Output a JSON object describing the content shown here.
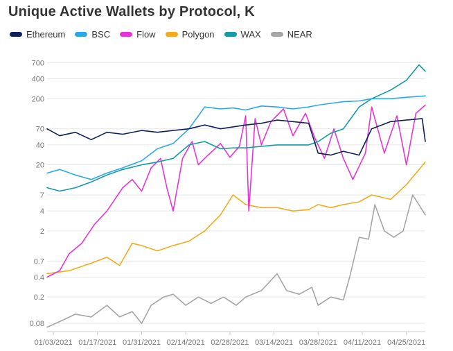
{
  "title": "Unique Active Wallets by Protocol, K",
  "chart_data": {
    "type": "line",
    "title": "Unique Active Wallets by Protocol, K",
    "xlabel": "",
    "ylabel": "",
    "y_scale": "log",
    "ylim": [
      0.06,
      900
    ],
    "x_range": [
      "2021-01-01",
      "2021-05-01"
    ],
    "y_ticks": [
      0.08,
      0.2,
      0.4,
      0.7,
      2,
      4,
      7,
      20,
      40,
      70,
      200,
      400,
      700
    ],
    "y_tick_labels": [
      "0.08",
      "0.2",
      "0.4",
      "0.7",
      "2",
      "4",
      "7",
      "20",
      "40",
      "70",
      "200",
      "400",
      "700"
    ],
    "x_ticks": [
      "2021-01-03",
      "2021-01-17",
      "2021-01-31",
      "2021-02-14",
      "2021-02-28",
      "2021-03-14",
      "2021-03-28",
      "2021-04-11",
      "2021-04-25"
    ],
    "x_tick_labels": [
      "01/03/2021",
      "01/17/2021",
      "01/31/2021",
      "02/14/2021",
      "02/28/2021",
      "03/14/2021",
      "03/28/2021",
      "04/11/2021",
      "04/25/2021"
    ],
    "grid": "horizontal",
    "legend_position": "top-left",
    "series": [
      {
        "name": "Ethereum",
        "color": "#0b2158",
        "points": [
          [
            "2021-01-01",
            70
          ],
          [
            "2021-01-05",
            55
          ],
          [
            "2021-01-10",
            62
          ],
          [
            "2021-01-15",
            48
          ],
          [
            "2021-01-20",
            62
          ],
          [
            "2021-01-25",
            58
          ],
          [
            "2021-01-31",
            66
          ],
          [
            "2021-02-05",
            62
          ],
          [
            "2021-02-10",
            66
          ],
          [
            "2021-02-15",
            70
          ],
          [
            "2021-02-20",
            80
          ],
          [
            "2021-02-25",
            70
          ],
          [
            "2021-03-01",
            75
          ],
          [
            "2021-03-05",
            80
          ],
          [
            "2021-03-10",
            85
          ],
          [
            "2021-03-15",
            95
          ],
          [
            "2021-03-20",
            90
          ],
          [
            "2021-03-25",
            85
          ],
          [
            "2021-03-28",
            30
          ],
          [
            "2021-04-01",
            28
          ],
          [
            "2021-04-05",
            32
          ],
          [
            "2021-04-10",
            28
          ],
          [
            "2021-04-14",
            70
          ],
          [
            "2021-04-20",
            90
          ],
          [
            "2021-04-25",
            95
          ],
          [
            "2021-04-30",
            100
          ],
          [
            "2021-05-01",
            45
          ]
        ]
      },
      {
        "name": "BSC",
        "color": "#2ba8ea",
        "points": [
          [
            "2021-01-01",
            15
          ],
          [
            "2021-01-05",
            17
          ],
          [
            "2021-01-10",
            14
          ],
          [
            "2021-01-15",
            12
          ],
          [
            "2021-01-20",
            15
          ],
          [
            "2021-01-25",
            18
          ],
          [
            "2021-01-31",
            23
          ],
          [
            "2021-02-05",
            35
          ],
          [
            "2021-02-10",
            42
          ],
          [
            "2021-02-15",
            70
          ],
          [
            "2021-02-18",
            110
          ],
          [
            "2021-02-20",
            150
          ],
          [
            "2021-02-25",
            140
          ],
          [
            "2021-03-01",
            145
          ],
          [
            "2021-03-05",
            135
          ],
          [
            "2021-03-10",
            155
          ],
          [
            "2021-03-15",
            150
          ],
          [
            "2021-03-20",
            140
          ],
          [
            "2021-03-25",
            150
          ],
          [
            "2021-03-28",
            160
          ],
          [
            "2021-04-01",
            170
          ],
          [
            "2021-04-05",
            180
          ],
          [
            "2021-04-10",
            185
          ],
          [
            "2021-04-14",
            200
          ],
          [
            "2021-04-20",
            200
          ],
          [
            "2021-04-25",
            210
          ],
          [
            "2021-05-01",
            220
          ]
        ]
      },
      {
        "name": "Flow",
        "color": "#e833d8",
        "points": [
          [
            "2021-01-01",
            0.4
          ],
          [
            "2021-01-05",
            0.5
          ],
          [
            "2021-01-08",
            0.9
          ],
          [
            "2021-01-12",
            1.3
          ],
          [
            "2021-01-16",
            2.5
          ],
          [
            "2021-01-20",
            4
          ],
          [
            "2021-01-25",
            9
          ],
          [
            "2021-01-28",
            12
          ],
          [
            "2021-01-31",
            8
          ],
          [
            "2021-02-03",
            18
          ],
          [
            "2021-02-06",
            25
          ],
          [
            "2021-02-08",
            9
          ],
          [
            "2021-02-10",
            4
          ],
          [
            "2021-02-13",
            25
          ],
          [
            "2021-02-16",
            45
          ],
          [
            "2021-02-18",
            20
          ],
          [
            "2021-02-20",
            25
          ],
          [
            "2021-02-25",
            42
          ],
          [
            "2021-02-28",
            26
          ],
          [
            "2021-03-03",
            38
          ],
          [
            "2021-03-05",
            110
          ],
          [
            "2021-03-06",
            4
          ],
          [
            "2021-03-08",
            100
          ],
          [
            "2021-03-10",
            40
          ],
          [
            "2021-03-13",
            90
          ],
          [
            "2021-03-17",
            140
          ],
          [
            "2021-03-20",
            55
          ],
          [
            "2021-03-24",
            120
          ],
          [
            "2021-03-27",
            50
          ],
          [
            "2021-03-30",
            25
          ],
          [
            "2021-04-02",
            70
          ],
          [
            "2021-04-05",
            25
          ],
          [
            "2021-04-08",
            12
          ],
          [
            "2021-04-12",
            30
          ],
          [
            "2021-04-14",
            150
          ],
          [
            "2021-04-18",
            30
          ],
          [
            "2021-04-22",
            110
          ],
          [
            "2021-04-25",
            20
          ],
          [
            "2021-04-28",
            120
          ],
          [
            "2021-05-01",
            160
          ]
        ]
      },
      {
        "name": "Polygon",
        "color": "#f3ab1d",
        "points": [
          [
            "2021-01-01",
            0.45
          ],
          [
            "2021-01-08",
            0.5
          ],
          [
            "2021-01-15",
            0.65
          ],
          [
            "2021-01-20",
            0.8
          ],
          [
            "2021-01-24",
            0.6
          ],
          [
            "2021-01-28",
            1.3
          ],
          [
            "2021-01-31",
            1.2
          ],
          [
            "2021-02-05",
            1.0
          ],
          [
            "2021-02-10",
            1.2
          ],
          [
            "2021-02-15",
            1.4
          ],
          [
            "2021-02-20",
            2.0
          ],
          [
            "2021-02-25",
            3.5
          ],
          [
            "2021-03-01",
            7.0
          ],
          [
            "2021-03-05",
            5.0
          ],
          [
            "2021-03-10",
            4.5
          ],
          [
            "2021-03-15",
            4.5
          ],
          [
            "2021-03-20",
            4.0
          ],
          [
            "2021-03-25",
            4.2
          ],
          [
            "2021-03-28",
            5.0
          ],
          [
            "2021-04-01",
            4.5
          ],
          [
            "2021-04-05",
            5.0
          ],
          [
            "2021-04-10",
            5.5
          ],
          [
            "2021-04-14",
            7.0
          ],
          [
            "2021-04-20",
            6.0
          ],
          [
            "2021-04-25",
            10.0
          ],
          [
            "2021-05-01",
            22.0
          ]
        ]
      },
      {
        "name": "WAX",
        "color": "#1499a5",
        "points": [
          [
            "2021-01-01",
            9
          ],
          [
            "2021-01-05",
            8
          ],
          [
            "2021-01-10",
            9
          ],
          [
            "2021-01-15",
            11
          ],
          [
            "2021-01-20",
            14
          ],
          [
            "2021-01-25",
            17
          ],
          [
            "2021-01-31",
            20
          ],
          [
            "2021-02-05",
            22
          ],
          [
            "2021-02-10",
            25
          ],
          [
            "2021-02-15",
            40
          ],
          [
            "2021-02-20",
            45
          ],
          [
            "2021-02-25",
            35
          ],
          [
            "2021-03-01",
            36
          ],
          [
            "2021-03-05",
            36
          ],
          [
            "2021-03-10",
            38
          ],
          [
            "2021-03-15",
            40
          ],
          [
            "2021-03-20",
            40
          ],
          [
            "2021-03-25",
            40
          ],
          [
            "2021-03-28",
            45
          ],
          [
            "2021-04-01",
            60
          ],
          [
            "2021-04-05",
            70
          ],
          [
            "2021-04-10",
            150
          ],
          [
            "2021-04-14",
            200
          ],
          [
            "2021-04-20",
            270
          ],
          [
            "2021-04-25",
            380
          ],
          [
            "2021-04-29",
            650
          ],
          [
            "2021-05-01",
            520
          ]
        ]
      },
      {
        "name": "NEAR",
        "color": "#a6a6a6",
        "points": [
          [
            "2021-01-01",
            0.07
          ],
          [
            "2021-01-05",
            0.085
          ],
          [
            "2021-01-10",
            0.11
          ],
          [
            "2021-01-15",
            0.1
          ],
          [
            "2021-01-20",
            0.15
          ],
          [
            "2021-01-24",
            0.1
          ],
          [
            "2021-01-28",
            0.12
          ],
          [
            "2021-01-31",
            0.08
          ],
          [
            "2021-02-03",
            0.15
          ],
          [
            "2021-02-07",
            0.2
          ],
          [
            "2021-02-10",
            0.22
          ],
          [
            "2021-02-14",
            0.15
          ],
          [
            "2021-02-18",
            0.2
          ],
          [
            "2021-02-22",
            0.16
          ],
          [
            "2021-02-26",
            0.2
          ],
          [
            "2021-03-02",
            0.15
          ],
          [
            "2021-03-05",
            0.2
          ],
          [
            "2021-03-10",
            0.25
          ],
          [
            "2021-03-15",
            0.45
          ],
          [
            "2021-03-18",
            0.25
          ],
          [
            "2021-03-22",
            0.22
          ],
          [
            "2021-03-26",
            0.28
          ],
          [
            "2021-03-28",
            0.15
          ],
          [
            "2021-04-01",
            0.2
          ],
          [
            "2021-04-05",
            0.18
          ],
          [
            "2021-04-07",
            0.4
          ],
          [
            "2021-04-10",
            1.6
          ],
          [
            "2021-04-13",
            1.5
          ],
          [
            "2021-04-15",
            5
          ],
          [
            "2021-04-18",
            2
          ],
          [
            "2021-04-21",
            1.6
          ],
          [
            "2021-04-24",
            2
          ],
          [
            "2021-04-27",
            7
          ],
          [
            "2021-05-01",
            3.5
          ]
        ]
      }
    ]
  }
}
